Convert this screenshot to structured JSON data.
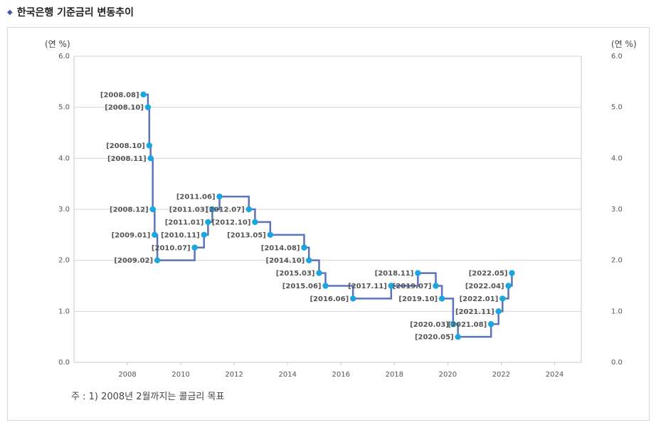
{
  "header": {
    "title": "한국은행 기준금리 변동추이"
  },
  "footnote": "주 : 1) 2008년 2월까지는 콜금리 목표",
  "chart_data": {
    "type": "line",
    "step": true,
    "ylabel_left": "(연 %)",
    "ylabel_right": "(연 %)",
    "ylim": [
      0,
      6
    ],
    "yticks": [
      "0.0",
      "1.0",
      "2.0",
      "3.0",
      "4.0",
      "5.0",
      "6.0"
    ],
    "xlim": [
      2006,
      2025
    ],
    "xticks": [
      "2008",
      "2010",
      "2012",
      "2014",
      "2016",
      "2018",
      "2020",
      "2022",
      "2024"
    ],
    "grid": true,
    "series_color": "#5b74b8",
    "marker_color": "#1ba6e0",
    "points": [
      {
        "label": "[2008.08]",
        "x": 2008.6,
        "y": 5.25
      },
      {
        "label": "[2008.10]",
        "x": 2008.77,
        "y": 5.0
      },
      {
        "label": "[2008.10]",
        "x": 2008.82,
        "y": 4.25
      },
      {
        "label": "[2008.11]",
        "x": 2008.87,
        "y": 4.0
      },
      {
        "label": "[2008.12]",
        "x": 2008.95,
        "y": 3.0
      },
      {
        "label": "[2009.01]",
        "x": 2009.02,
        "y": 2.5
      },
      {
        "label": "[2009.02]",
        "x": 2009.12,
        "y": 2.0
      },
      {
        "label": "[2010.07]",
        "x": 2010.52,
        "y": 2.25
      },
      {
        "label": "[2010.11]",
        "x": 2010.87,
        "y": 2.5
      },
      {
        "label": "[2011.01]",
        "x": 2011.02,
        "y": 2.75
      },
      {
        "label": "[2011.03]",
        "x": 2011.18,
        "y": 3.0
      },
      {
        "label": "[2011.06]",
        "x": 2011.45,
        "y": 3.25
      },
      {
        "label": "[2012.07]",
        "x": 2012.55,
        "y": 3.0
      },
      {
        "label": "[2012.10]",
        "x": 2012.78,
        "y": 2.75
      },
      {
        "label": "[2013.05]",
        "x": 2013.35,
        "y": 2.5
      },
      {
        "label": "[2014.08]",
        "x": 2014.62,
        "y": 2.25
      },
      {
        "label": "[2014.10]",
        "x": 2014.8,
        "y": 2.0
      },
      {
        "label": "[2015.03]",
        "x": 2015.18,
        "y": 1.75
      },
      {
        "label": "[2015.06]",
        "x": 2015.42,
        "y": 1.5
      },
      {
        "label": "[2016.06]",
        "x": 2016.45,
        "y": 1.25
      },
      {
        "label": "[2017.11]",
        "x": 2017.88,
        "y": 1.5
      },
      {
        "label": "[2018.11]",
        "x": 2018.88,
        "y": 1.75
      },
      {
        "label": "[2019.07]",
        "x": 2019.55,
        "y": 1.5
      },
      {
        "label": "[2019.10]",
        "x": 2019.78,
        "y": 1.25
      },
      {
        "label": "[2020.03]",
        "x": 2020.2,
        "y": 0.75
      },
      {
        "label": "[2020.05]",
        "x": 2020.38,
        "y": 0.5
      },
      {
        "label": "[2021.08]",
        "x": 2021.62,
        "y": 0.75
      },
      {
        "label": "[2021.11]",
        "x": 2021.9,
        "y": 1.0
      },
      {
        "label": "[2022.01]",
        "x": 2022.05,
        "y": 1.25
      },
      {
        "label": "[2022.04]",
        "x": 2022.27,
        "y": 1.5
      },
      {
        "label": "[2022.05]",
        "x": 2022.4,
        "y": 1.75
      }
    ]
  }
}
